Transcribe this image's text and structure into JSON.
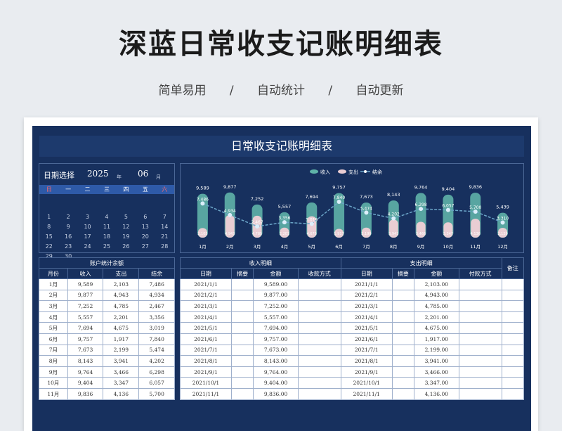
{
  "page": {
    "title": "深蓝日常收支记账明细表",
    "subtitles": [
      "简单易用",
      "/",
      "自动统计",
      "/",
      "自动更新"
    ]
  },
  "sheet": {
    "title": "日常收支记账明细表"
  },
  "calendar": {
    "label": "日期选择",
    "year": "2025",
    "year_unit": "年",
    "month": "06",
    "month_unit": "月",
    "weekdays": [
      "日",
      "一",
      "二",
      "三",
      "四",
      "五",
      "六"
    ],
    "weeks": [
      [
        "",
        "",
        "",
        "",
        "",
        "",
        ""
      ],
      [
        "1",
        "2",
        "3",
        "4",
        "5",
        "6",
        "7"
      ],
      [
        "8",
        "9",
        "10",
        "11",
        "12",
        "13",
        "14"
      ],
      [
        "15",
        "16",
        "17",
        "18",
        "19",
        "20",
        "21"
      ],
      [
        "22",
        "23",
        "24",
        "25",
        "26",
        "27",
        "28"
      ],
      [
        "29",
        "30",
        "",
        "",
        "",
        "",
        ""
      ]
    ]
  },
  "chart_data": {
    "type": "bar",
    "categories": [
      "1月",
      "2月",
      "3月",
      "4月",
      "5月",
      "6月",
      "7月",
      "8月",
      "9月",
      "10月",
      "11月",
      "12月"
    ],
    "series": [
      {
        "name": "收入",
        "type": "bar",
        "color": "#5fb3a8",
        "values": [
          9589,
          9877,
          7252,
          5557,
          7694,
          9757,
          7673,
          8143,
          9764,
          9404,
          9836,
          5439
        ]
      },
      {
        "name": "支出",
        "type": "bar",
        "color": "#e9cdd3",
        "values": [
          2103,
          4943,
          4785,
          2201,
          4675,
          1917,
          2199,
          3941,
          3466,
          3347,
          4136,
          2129
        ]
      },
      {
        "name": "结余",
        "type": "line",
        "color": "#6ba5c8",
        "values": [
          7486,
          4934,
          2467,
          3356,
          3019,
          7840,
          5474,
          4202,
          6298,
          6057,
          5700,
          3310
        ]
      }
    ],
    "value_labels": [
      "9,589",
      "9,877",
      "7,252",
      "5,557",
      "7,694",
      "9,757",
      "7,673",
      "8,143",
      "9,764",
      "9,404",
      "9,836",
      "5,439"
    ],
    "balance_labels": [
      "7,486",
      "4,934",
      "2,467",
      "3,356",
      "3,019",
      "7,840",
      "5,474",
      "4,202",
      "6,298",
      "6,057",
      "5,700",
      "3,310"
    ],
    "expense_labels": [
      "2,103",
      "4,943",
      "4,785",
      "2,201",
      "4,675",
      "1,917",
      "2,199",
      "3,941",
      "3,466",
      "3,347",
      "4,136",
      "2,129"
    ],
    "legend": "top-center",
    "ylim": [
      0,
      10000
    ]
  },
  "summary_table": {
    "title": "账户统计余额",
    "headers": [
      "月份",
      "收入",
      "支出",
      "结余"
    ],
    "rows": [
      [
        "1月",
        "9,589",
        "2,103",
        "7,486"
      ],
      [
        "2月",
        "9,877",
        "4,943",
        "4,934"
      ],
      [
        "3月",
        "7,252",
        "4,785",
        "2,467"
      ],
      [
        "4月",
        "5,557",
        "2,201",
        "3,356"
      ],
      [
        "5月",
        "7,694",
        "4,675",
        "3,019"
      ],
      [
        "6月",
        "9,757",
        "1,917",
        "7,840"
      ],
      [
        "7月",
        "7,673",
        "2,199",
        "5,474"
      ],
      [
        "8月",
        "8,143",
        "3,941",
        "4,202"
      ],
      [
        "9月",
        "9,764",
        "3,466",
        "6,298"
      ],
      [
        "10月",
        "9,404",
        "3,347",
        "6,057"
      ],
      [
        "11月",
        "9,836",
        "4,136",
        "5,700"
      ]
    ]
  },
  "detail_table": {
    "income_title": "收入明细",
    "expense_title": "支出明细",
    "note_title": "备注",
    "headers": [
      "日期",
      "摘要",
      "金额",
      "收款方式",
      "日期",
      "摘要",
      "金额",
      "付款方式"
    ],
    "rows": [
      [
        "2021/1/1",
        "",
        "9,589.00",
        "",
        "2021/1/1",
        "",
        "2,103.00",
        "",
        ""
      ],
      [
        "2021/2/1",
        "",
        "9,877.00",
        "",
        "2021/2/1",
        "",
        "4,943.00",
        "",
        ""
      ],
      [
        "2021/3/1",
        "",
        "7,252.00",
        "",
        "2021/3/1",
        "",
        "4,785.00",
        "",
        ""
      ],
      [
        "2021/4/1",
        "",
        "5,557.00",
        "",
        "2021/4/1",
        "",
        "2,201.00",
        "",
        ""
      ],
      [
        "2021/5/1",
        "",
        "7,694.00",
        "",
        "2021/5/1",
        "",
        "4,675.00",
        "",
        ""
      ],
      [
        "2021/6/1",
        "",
        "9,757.00",
        "",
        "2021/6/1",
        "",
        "1,917.00",
        "",
        ""
      ],
      [
        "2021/7/1",
        "",
        "7,673.00",
        "",
        "2021/7/1",
        "",
        "2,199.00",
        "",
        ""
      ],
      [
        "2021/8/1",
        "",
        "8,143.00",
        "",
        "2021/8/1",
        "",
        "3,941.00",
        "",
        ""
      ],
      [
        "2021/9/1",
        "",
        "9,764.00",
        "",
        "2021/9/1",
        "",
        "3,466.00",
        "",
        ""
      ],
      [
        "2021/10/1",
        "",
        "9,404.00",
        "",
        "2021/10/1",
        "",
        "3,347.00",
        "",
        ""
      ],
      [
        "2021/11/1",
        "",
        "9,836.00",
        "",
        "2021/11/1",
        "",
        "4,136.00",
        "",
        ""
      ]
    ]
  }
}
